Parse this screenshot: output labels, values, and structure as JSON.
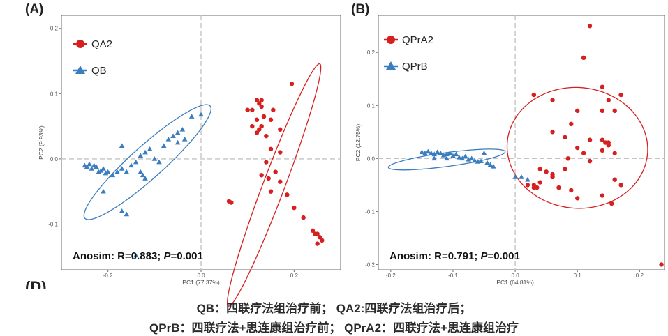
{
  "panels": [
    {
      "label": "(A)",
      "x_axis_title": "PC1  (77.37%)",
      "y_axis_title": "PC2  (9.93%)",
      "xlim": [
        -0.3,
        0.3
      ],
      "ylim": [
        -0.17,
        0.22
      ],
      "x_ticks": [
        -0.2,
        0,
        0.2
      ],
      "x_tick_labels": [
        "-0.2",
        "0.0",
        "0.2"
      ],
      "y_ticks": [
        -0.1,
        0,
        0.1,
        0.2
      ],
      "y_tick_labels": [
        "-0.1",
        "0.0",
        "0.1",
        "0.2"
      ],
      "legend": [
        {
          "name": "QA2",
          "color": "#d62020",
          "marker": "circle"
        },
        {
          "name": "QB",
          "color": "#3a7ebf",
          "marker": "triangle"
        }
      ],
      "stat_prefix": "Anosim: R=0.883; ",
      "stat_p_letter": "P",
      "stat_suffix": "=0.001",
      "chart_data": {
        "type": "scatter",
        "series": [
          {
            "name": "QA2",
            "color": "#d62020",
            "marker": "circle",
            "points": [
              [
                0.12,
                0.09
              ],
              [
                0.13,
                0.09
              ],
              [
                0.125,
                0.085
              ],
              [
                0.11,
                0.075
              ],
              [
                0.13,
                0.08
              ],
              [
                0.1,
                0.075
              ],
              [
                0.12,
                0.06
              ],
              [
                0.135,
                0.065
              ],
              [
                0.11,
                0.05
              ],
              [
                0.13,
                0.05
              ],
              [
                0.12,
                0.04
              ],
              [
                0.14,
                0.035
              ],
              [
                0.125,
                0.045
              ],
              [
                0.15,
                0.06
              ],
              [
                0.155,
                0.075
              ],
              [
                0.17,
                0.045
              ],
              [
                0.195,
                0.115
              ],
              [
                0.15,
                0.015
              ],
              [
                0.17,
                0.01
              ],
              [
                0.14,
                -0.005
              ],
              [
                0.16,
                -0.02
              ],
              [
                0.13,
                -0.025
              ],
              [
                0.145,
                -0.03
              ],
              [
                0.17,
                -0.035
              ],
              [
                0.15,
                -0.05
              ],
              [
                0.185,
                -0.055
              ],
              [
                0.2,
                -0.075
              ],
              [
                0.22,
                -0.09
              ],
              [
                0.24,
                -0.11
              ],
              [
                0.25,
                -0.115
              ],
              [
                0.255,
                -0.12
              ],
              [
                0.26,
                -0.125
              ],
              [
                0.25,
                -0.13
              ],
              [
                0.245,
                -0.115
              ],
              [
                0.06,
                -0.065
              ],
              [
                0.065,
                -0.067
              ]
            ]
          },
          {
            "name": "QB",
            "color": "#3a7ebf",
            "marker": "triangle",
            "points": [
              [
                -0.25,
                -0.01
              ],
              [
                -0.245,
                -0.012
              ],
              [
                -0.24,
                -0.008
              ],
              [
                -0.235,
                -0.015
              ],
              [
                -0.23,
                -0.01
              ],
              [
                -0.225,
                -0.012
              ],
              [
                -0.22,
                -0.02
              ],
              [
                -0.215,
                -0.018
              ],
              [
                -0.21,
                -0.015
              ],
              [
                -0.205,
                -0.022
              ],
              [
                -0.2,
                -0.02
              ],
              [
                -0.19,
                -0.025
              ],
              [
                -0.18,
                -0.02
              ],
              [
                -0.17,
                -0.015
              ],
              [
                -0.16,
                -0.02
              ],
              [
                -0.15,
                -0.01
              ],
              [
                -0.14,
                -0.005
              ],
              [
                -0.13,
                -0.02
              ],
              [
                -0.125,
                -0.025
              ],
              [
                -0.12,
                -0.03
              ],
              [
                -0.13,
                0.005
              ],
              [
                -0.12,
                0.01
              ],
              [
                -0.11,
                0.015
              ],
              [
                -0.1,
                0.0
              ],
              [
                -0.09,
                -0.005
              ],
              [
                -0.08,
                0.02
              ],
              [
                -0.07,
                0.03
              ],
              [
                -0.06,
                0.035
              ],
              [
                -0.05,
                0.04
              ],
              [
                -0.04,
                0.045
              ],
              [
                -0.035,
                0.03
              ],
              [
                -0.05,
                0.025
              ],
              [
                -0.02,
                0.065
              ],
              [
                0.0,
                0.068
              ],
              [
                -0.21,
                -0.05
              ],
              [
                -0.17,
                -0.08
              ],
              [
                -0.16,
                -0.085
              ],
              [
                -0.14,
                -0.148
              ],
              [
                -0.17,
                0.02
              ]
            ]
          }
        ],
        "ellipses": [
          {
            "series": "QB",
            "center": [
              -0.115,
              -0.005
            ],
            "radii": [
              0.16,
              0.028
            ],
            "angle_deg": 32
          },
          {
            "series": "QA2",
            "center": [
              0.157,
              -0.04
            ],
            "radii": [
              0.21,
              0.022
            ],
            "angle_deg": 62
          }
        ]
      }
    },
    {
      "label": "(B)",
      "x_axis_title": "PC1  (64.81%)",
      "y_axis_title": "PC2  (12.75%)",
      "xlim": [
        -0.22,
        0.24
      ],
      "ylim": [
        -0.21,
        0.27
      ],
      "x_ticks": [
        -0.2,
        -0.1,
        0,
        0.1,
        0.2
      ],
      "x_tick_labels": [
        "-0.2",
        "-0.1",
        "0.0",
        "0.1",
        "0.2"
      ],
      "y_ticks": [
        -0.2,
        -0.1,
        0,
        0.1,
        0.2
      ],
      "y_tick_labels": [
        "-0.2",
        "-0.1",
        "0.0",
        "0.1",
        "0.2"
      ],
      "legend": [
        {
          "name": "QPrA2",
          "color": "#d62020",
          "marker": "circle"
        },
        {
          "name": "QPrB",
          "color": "#3a7ebf",
          "marker": "triangle"
        }
      ],
      "stat_prefix": "Anosim: R=0.791; ",
      "stat_p_letter": "P",
      "stat_suffix": "=0.001",
      "chart_data": {
        "type": "scatter",
        "series": [
          {
            "name": "QPrA2",
            "color": "#d62020",
            "marker": "circle",
            "points": [
              [
                0.12,
                0.25
              ],
              [
                0.11,
                0.19
              ],
              [
                0.14,
                0.135
              ],
              [
                0.03,
                0.12
              ],
              [
                0.06,
                0.11
              ],
              [
                0.15,
                0.11
              ],
              [
                0.17,
                0.12
              ],
              [
                0.1,
                0.09
              ],
              [
                0.14,
                0.09
              ],
              [
                0.16,
                0.09
              ],
              [
                0.09,
                0.065
              ],
              [
                0.06,
                0.05
              ],
              [
                0.08,
                0.04
              ],
              [
                0.12,
                0.035
              ],
              [
                0.14,
                0.035
              ],
              [
                0.145,
                0.03
              ],
              [
                0.15,
                0.03
              ],
              [
                0.15,
                0.025
              ],
              [
                0.1,
                0.02
              ],
              [
                0.11,
                0.01
              ],
              [
                0.14,
                0.015
              ],
              [
                0.16,
                0.01
              ],
              [
                0.085,
                0.0
              ],
              [
                0.12,
                -0.005
              ],
              [
                0.08,
                -0.02
              ],
              [
                0.04,
                -0.02
              ],
              [
                0.05,
                -0.025
              ],
              [
                0.06,
                -0.03
              ],
              [
                0.04,
                -0.045
              ],
              [
                0.03,
                -0.05
              ],
              [
                0.03,
                -0.055
              ],
              [
                0.035,
                -0.055
              ],
              [
                0.02,
                -0.05
              ],
              [
                0.07,
                -0.055
              ],
              [
                0.09,
                -0.06
              ],
              [
                0.16,
                -0.04
              ],
              [
                0.14,
                -0.07
              ],
              [
                0.17,
                -0.05
              ],
              [
                0.155,
                -0.085
              ],
              [
                0.1,
                -0.075
              ],
              [
                0.235,
                -0.2
              ],
              [
                0.06,
                -0.035
              ]
            ]
          },
          {
            "name": "QPrB",
            "color": "#3a7ebf",
            "marker": "triangle",
            "points": [
              [
                -0.15,
                0.012
              ],
              [
                -0.145,
                0.01
              ],
              [
                -0.14,
                0.013
              ],
              [
                -0.135,
                0.01
              ],
              [
                -0.13,
                0.008
              ],
              [
                -0.125,
                0.012
              ],
              [
                -0.12,
                0.01
              ],
              [
                -0.115,
                0.006
              ],
              [
                -0.11,
                0.008
              ],
              [
                -0.105,
                0.01
              ],
              [
                -0.1,
                0.005
              ],
              [
                -0.095,
                0.008
              ],
              [
                -0.09,
                0.002
              ],
              [
                -0.085,
                0.0
              ],
              [
                -0.08,
                0.004
              ],
              [
                -0.075,
                -0.002
              ],
              [
                -0.07,
                0.0
              ],
              [
                -0.065,
                -0.004
              ],
              [
                -0.06,
                -0.006
              ],
              [
                -0.055,
                -0.005
              ],
              [
                -0.05,
                0.01
              ],
              [
                -0.045,
                -0.008
              ],
              [
                -0.04,
                -0.012
              ],
              [
                -0.035,
                -0.015
              ],
              [
                -0.11,
                0.0
              ],
              [
                -0.13,
                0.0
              ],
              [
                0.01,
                -0.035
              ],
              [
                0.0,
                -0.035
              ],
              [
                0.02,
                -0.04
              ]
            ]
          }
        ],
        "ellipses": [
          {
            "series": "QPrB",
            "center": [
              -0.11,
              -0.002
            ],
            "radii": [
              0.095,
              0.013
            ],
            "angle_deg": 9
          },
          {
            "series": "QPrA2",
            "center": [
              0.1,
              0.02
            ],
            "radii": [
              0.112,
              0.115
            ],
            "angle_deg": 35
          }
        ]
      }
    }
  ],
  "hidden_panel_label": "(D)",
  "caption_line1": "QB：四联疗法组治疗前； QA2:四联疗法组治疗后；",
  "caption_line2": "QPrB：四联疗法+思连康组治疗前； QPrA2：四联疗法+思连康组治疗"
}
